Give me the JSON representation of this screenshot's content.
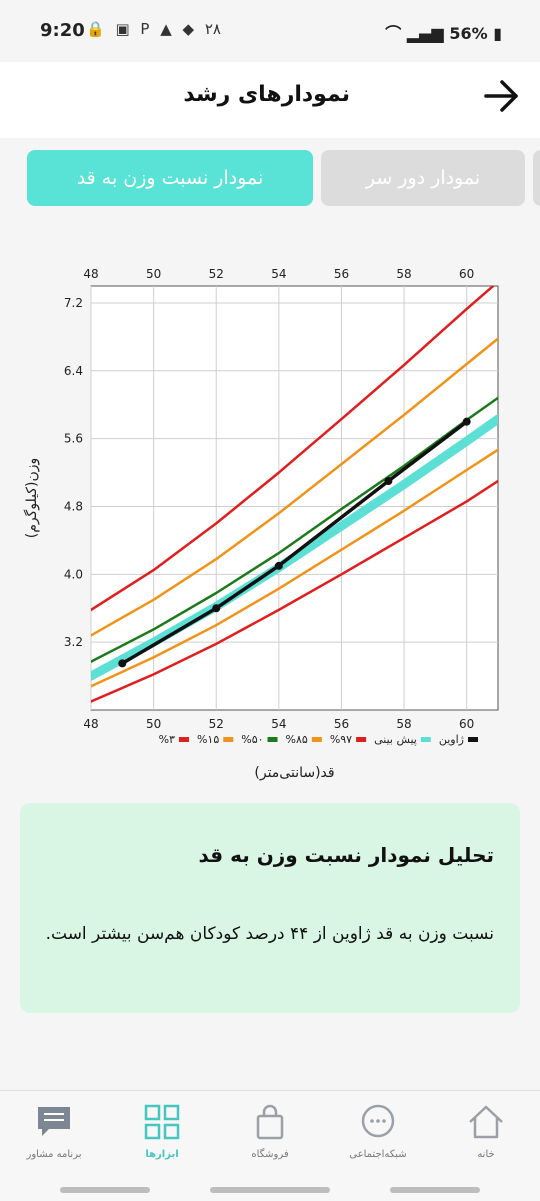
{
  "status": {
    "time": "9:20",
    "extra": "۲۸",
    "battery": "56%"
  },
  "header": {
    "title": "نمودارهای رشد"
  },
  "tabs": [
    {
      "label": "نمودار نسبت وزن به قد",
      "active": true
    },
    {
      "label": "نمودار دور سر",
      "active": false
    }
  ],
  "chart_data": {
    "type": "line",
    "xlabel": "قد(سانتی‌متر)",
    "ylabel": "وزن(کیلوگرم)",
    "xlim": [
      48,
      61
    ],
    "ylim": [
      2.4,
      7.4
    ],
    "xticks": [
      48,
      50,
      52,
      54,
      56,
      58,
      60
    ],
    "yticks": [
      3.2,
      4.0,
      4.8,
      5.6,
      6.4,
      7.2
    ],
    "xtick_labels": [
      "48",
      "50",
      "52",
      "54",
      "56",
      "58",
      "60"
    ],
    "ytick_labels": [
      "3.2",
      "4.0",
      "4.8",
      "5.6",
      "6.4",
      "7.2"
    ],
    "grid": true,
    "legend_position": "bottom",
    "series": [
      {
        "name": "%۳",
        "color": "#e01e1e",
        "width": 2.5,
        "x": [
          48,
          50,
          52,
          54,
          56,
          58,
          60,
          61
        ],
        "y": [
          2.5,
          2.82,
          3.18,
          3.58,
          4.0,
          4.43,
          4.86,
          5.1
        ]
      },
      {
        "name": "%۱۵",
        "color": "#f0931a",
        "width": 2.5,
        "x": [
          48,
          50,
          52,
          54,
          56,
          58,
          60,
          61
        ],
        "y": [
          2.68,
          3.02,
          3.4,
          3.83,
          4.29,
          4.75,
          5.23,
          5.47
        ]
      },
      {
        "name": "%۵۰",
        "color": "#1b7a1b",
        "width": 2.5,
        "x": [
          48,
          50,
          52,
          54,
          56,
          58,
          60,
          61
        ],
        "y": [
          2.97,
          3.35,
          3.78,
          4.25,
          4.77,
          5.28,
          5.82,
          6.08
        ]
      },
      {
        "name": "%۸۵",
        "color": "#f0931a",
        "width": 2.5,
        "x": [
          48,
          50,
          52,
          54,
          56,
          58,
          60,
          61
        ],
        "y": [
          3.28,
          3.7,
          4.18,
          4.72,
          5.3,
          5.88,
          6.48,
          6.78
        ]
      },
      {
        "name": "%۹۷",
        "color": "#e01e1e",
        "width": 2.5,
        "x": [
          48,
          50,
          52,
          54,
          56,
          58,
          60,
          61
        ],
        "y": [
          3.58,
          4.05,
          4.6,
          5.2,
          5.83,
          6.47,
          7.13,
          7.45
        ]
      },
      {
        "name": "پیش بینی",
        "color": "#5ce0d6",
        "width": 9,
        "x": [
          48,
          50,
          52,
          54,
          56,
          58,
          60,
          61
        ],
        "y": [
          2.8,
          3.2,
          3.62,
          4.08,
          4.57,
          5.06,
          5.57,
          5.83
        ]
      },
      {
        "name": "ژاوین",
        "color": "#111111",
        "width": 3.5,
        "markers": true,
        "x": [
          49,
          52,
          54,
          57.5,
          60
        ],
        "y": [
          2.95,
          3.6,
          4.1,
          5.1,
          5.8
        ]
      }
    ]
  },
  "analysis": {
    "title": "تحلیل نمودار نسبت وزن به قد",
    "text": "نسبت وزن به قد ژاوین از ۴۴ درصد کودکان هم‌سن بیشتر است."
  },
  "nav": [
    {
      "label": "خانه",
      "icon": "home-icon",
      "active": false
    },
    {
      "label": "شبکه‌اجتماعی",
      "icon": "chat-bubble-icon",
      "active": false
    },
    {
      "label": "فروشگاه",
      "icon": "shopping-bag-icon",
      "active": false
    },
    {
      "label": "ابزارها",
      "icon": "grid-icon",
      "active": true
    },
    {
      "label": "برنامه مشاور",
      "icon": "message-icon",
      "active": false
    }
  ]
}
